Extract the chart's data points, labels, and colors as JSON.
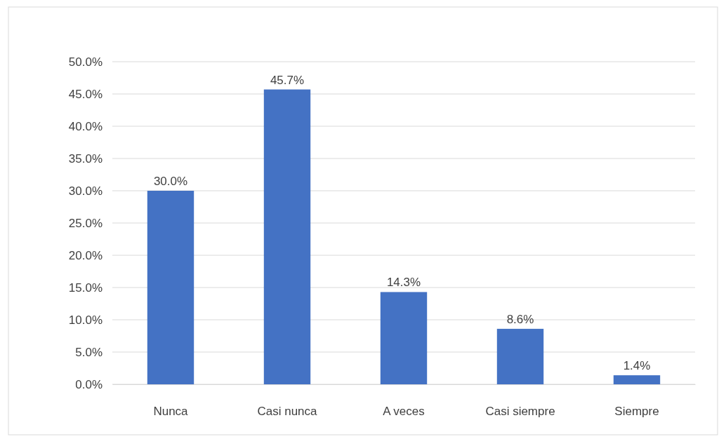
{
  "chart_data": {
    "type": "bar",
    "categories": [
      "Nunca",
      "Casi nunca",
      "A veces",
      "Casi siempre",
      "Siempre"
    ],
    "values": [
      30.0,
      45.7,
      14.3,
      8.6,
      1.4
    ],
    "value_labels": [
      "30.0%",
      "45.7%",
      "14.3%",
      "8.6%",
      "1.4%"
    ],
    "color": "#4472c4",
    "ylim": [
      0,
      50
    ],
    "yticks": [
      {
        "value": 0,
        "label": "0.0%"
      },
      {
        "value": 5,
        "label": "5.0%"
      },
      {
        "value": 10,
        "label": "10.0%"
      },
      {
        "value": 15,
        "label": "15.0%"
      },
      {
        "value": 20,
        "label": "20.0%"
      },
      {
        "value": 25,
        "label": "25.0%"
      },
      {
        "value": 30,
        "label": "30.0%"
      },
      {
        "value": 35,
        "label": "35.0%"
      },
      {
        "value": 40,
        "label": "40.0%"
      },
      {
        "value": 45,
        "label": "45.0%"
      },
      {
        "value": 50,
        "label": "50.0%"
      }
    ],
    "grid": true
  }
}
